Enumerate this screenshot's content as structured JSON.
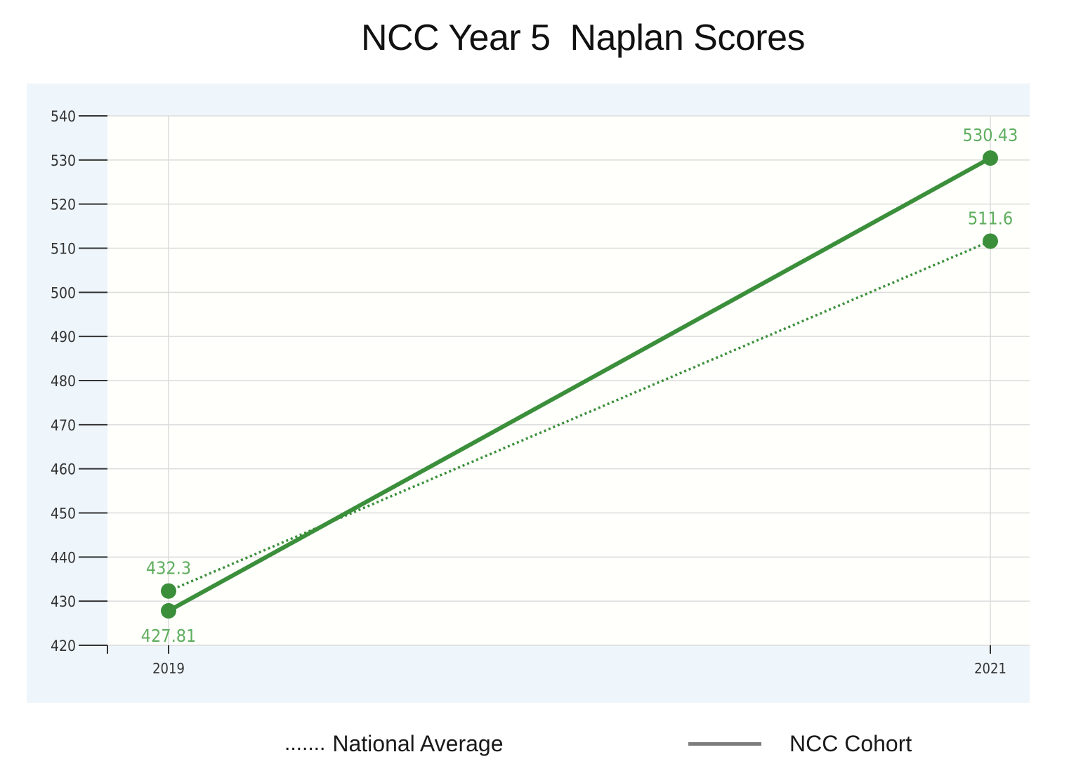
{
  "chart_data": {
    "type": "line",
    "title": "NCC Year 5  Naplan Scores",
    "x": [
      "2019",
      "2021"
    ],
    "ylim": [
      420,
      540
    ],
    "yticks": [
      540,
      530,
      520,
      510,
      500,
      490,
      480,
      470,
      460,
      450,
      440,
      430,
      420
    ],
    "grid": true,
    "series": [
      {
        "name": "National Average",
        "values": [
          432.3,
          511.6
        ],
        "data_labels": [
          "432.3",
          "511.6"
        ],
        "line_style": "dotted",
        "color": "#3b8f3b"
      },
      {
        "name": "NCC Cohort",
        "values": [
          427.81,
          530.43
        ],
        "data_labels": [
          "427.81",
          "530.43"
        ],
        "line_style": "solid",
        "color": "#3b8f3b"
      }
    ],
    "legend": {
      "placement": "bottom",
      "items": [
        {
          "marker": ".......",
          "label": "National Average"
        },
        {
          "marker": "line",
          "marker_color": "#7d7d7d",
          "label": "NCC Cohort"
        }
      ]
    },
    "colors": {
      "plot_background": "#fffffb",
      "panel_background": "#eef5fb",
      "label_color": "#5fae5f",
      "grid_color": "#dcdcdc"
    }
  }
}
